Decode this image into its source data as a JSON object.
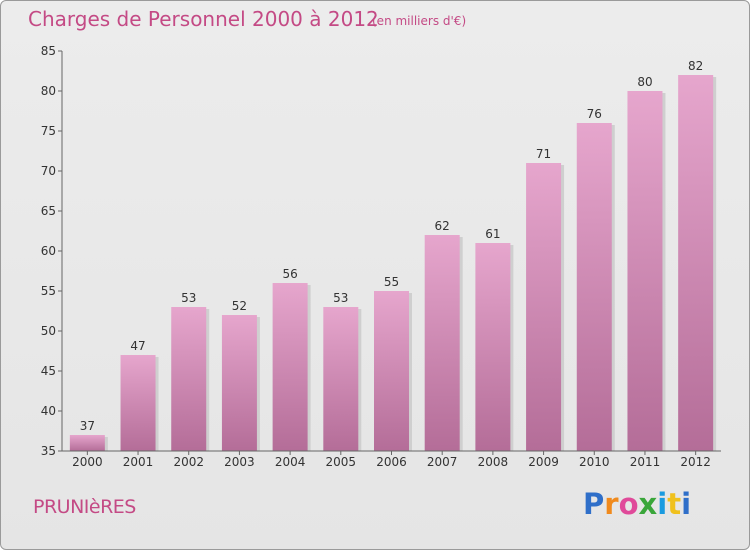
{
  "header": {
    "title": "Charges de Personnel 2000 à 2012",
    "subtitle": "(en milliers d'€)"
  },
  "footer": {
    "commune": "PRUNIèRES",
    "brand": [
      "P",
      "r",
      "o",
      "x",
      "i",
      "t",
      "i"
    ]
  },
  "chart_data": {
    "type": "bar",
    "title": "Charges de Personnel 2000 à 2012",
    "subtitle": "(en milliers d'€)",
    "xlabel": "",
    "ylabel": "",
    "categories": [
      "2000",
      "2001",
      "2002",
      "2003",
      "2004",
      "2005",
      "2006",
      "2007",
      "2008",
      "2009",
      "2010",
      "2011",
      "2012"
    ],
    "values": [
      37,
      47,
      53,
      52,
      56,
      53,
      55,
      62,
      61,
      71,
      76,
      80,
      82
    ],
    "ylim": [
      35,
      85
    ],
    "yticks": [
      35,
      40,
      45,
      50,
      55,
      60,
      65,
      70,
      75,
      80,
      85
    ],
    "grid": false,
    "legend": "none",
    "colors": {
      "bar_top": "#e6a6cd",
      "bar_bottom": "#b46d98",
      "accent": "#c44a85"
    }
  }
}
